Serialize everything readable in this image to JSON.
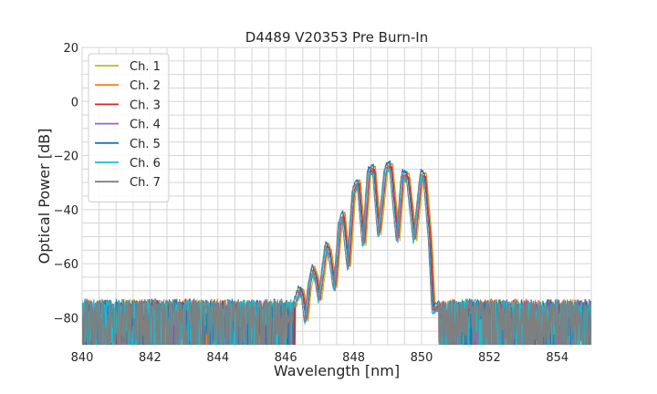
{
  "chart_data": {
    "type": "line",
    "title": "D4489 V20353 Pre Burn-In",
    "xlabel": "Wavelength [nm]",
    "ylabel": "Optical Power [dB]",
    "xlim": [
      840,
      855
    ],
    "ylim": [
      -90,
      20
    ],
    "xticks": [
      840,
      842,
      844,
      846,
      848,
      850,
      852,
      854
    ],
    "yticks": [
      20,
      0,
      -20,
      -40,
      -60,
      -80
    ],
    "ytick_labels": [
      "20",
      "0",
      "−20",
      "−40",
      "−60",
      "−80"
    ],
    "grid": true,
    "legend_position": "top-left",
    "noise_floor_db": -74,
    "series": [
      {
        "name": "Ch. 1",
        "color": "#bcbd22",
        "shift": 0.06,
        "peak_offset": -1.5
      },
      {
        "name": "Ch. 2",
        "color": "#ff7f0e",
        "shift": 0.04,
        "peak_offset": 0.0
      },
      {
        "name": "Ch. 3",
        "color": "#d62728",
        "shift": 0.02,
        "peak_offset": -1.0
      },
      {
        "name": "Ch. 4",
        "color": "#9467bd",
        "shift": 0.0,
        "peak_offset": -2.0
      },
      {
        "name": "Ch. 5",
        "color": "#1f77b4",
        "shift": -0.02,
        "peak_offset": 0.5
      },
      {
        "name": "Ch. 6",
        "color": "#17becf",
        "shift": -0.04,
        "peak_offset": -2.5
      },
      {
        "name": "Ch. 7",
        "color": "#7f7f7f",
        "shift": -0.05,
        "peak_offset": -1.0
      }
    ],
    "spectrum_shape": [
      [
        846.2,
        -76
      ],
      [
        846.4,
        -69
      ],
      [
        846.5,
        -70
      ],
      [
        846.6,
        -80
      ],
      [
        846.7,
        -67
      ],
      [
        846.8,
        -61
      ],
      [
        846.9,
        -64
      ],
      [
        847.0,
        -72
      ],
      [
        847.1,
        -62
      ],
      [
        847.2,
        -52
      ],
      [
        847.3,
        -55
      ],
      [
        847.45,
        -68
      ],
      [
        847.6,
        -44
      ],
      [
        847.7,
        -41
      ],
      [
        847.85,
        -60
      ],
      [
        848.0,
        -32
      ],
      [
        848.15,
        -29
      ],
      [
        848.3,
        -52
      ],
      [
        848.45,
        -25
      ],
      [
        848.6,
        -24
      ],
      [
        848.75,
        -48
      ],
      [
        848.95,
        -24
      ],
      [
        849.1,
        -23
      ],
      [
        849.3,
        -50
      ],
      [
        849.45,
        -26
      ],
      [
        849.6,
        -27
      ],
      [
        849.8,
        -50
      ],
      [
        850.0,
        -26
      ],
      [
        850.1,
        -27
      ],
      [
        850.25,
        -50
      ],
      [
        850.35,
        -76
      ],
      [
        850.6,
        -74
      ]
    ]
  }
}
